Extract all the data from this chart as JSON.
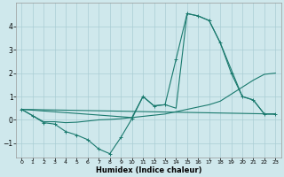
{
  "xlabel": "Humidex (Indice chaleur)",
  "bg_color": "#cfe8ec",
  "grid_color": "#aacdd5",
  "line_color": "#1a7a6e",
  "xlim": [
    -0.5,
    23.5
  ],
  "ylim": [
    -1.6,
    5.0
  ],
  "yticks": [
    -1,
    0,
    1,
    2,
    3,
    4
  ],
  "xticks": [
    0,
    1,
    2,
    3,
    4,
    5,
    6,
    7,
    8,
    9,
    10,
    11,
    12,
    13,
    14,
    15,
    16,
    17,
    18,
    19,
    20,
    21,
    22,
    23
  ],
  "line1_x": [
    0,
    1,
    2,
    3,
    4,
    5,
    6,
    7,
    8,
    9,
    10,
    11,
    12,
    13,
    14,
    15,
    16,
    17,
    18,
    19,
    20,
    21,
    22,
    23
  ],
  "line1_y": [
    0.45,
    0.18,
    -0.12,
    -0.18,
    -0.5,
    -0.65,
    -0.85,
    -1.25,
    -1.45,
    -0.75,
    0.05,
    1.0,
    0.6,
    0.65,
    2.6,
    4.55,
    4.45,
    4.25,
    3.3,
    2.0,
    1.0,
    0.85,
    0.25,
    0.25
  ],
  "line2_x": [
    0,
    1,
    2,
    3,
    4,
    5,
    6,
    7,
    8,
    9,
    10,
    11,
    12,
    13,
    14,
    15,
    16,
    17,
    18,
    19,
    20,
    21,
    22,
    23
  ],
  "line2_y": [
    0.45,
    0.18,
    -0.08,
    -0.08,
    -0.12,
    -0.1,
    -0.05,
    0.0,
    0.02,
    0.05,
    0.1,
    0.15,
    0.2,
    0.25,
    0.35,
    0.45,
    0.55,
    0.65,
    0.8,
    1.1,
    1.4,
    1.7,
    1.95,
    2.0
  ],
  "line3_x": [
    0,
    23
  ],
  "line3_y": [
    0.45,
    0.25
  ],
  "line4_x": [
    0,
    10,
    11,
    12,
    13,
    14,
    15,
    16,
    17,
    18,
    20,
    21,
    22,
    23
  ],
  "line4_y": [
    0.45,
    0.1,
    1.0,
    0.6,
    0.65,
    0.5,
    4.55,
    4.45,
    4.25,
    3.3,
    1.0,
    0.85,
    0.25,
    0.25
  ]
}
